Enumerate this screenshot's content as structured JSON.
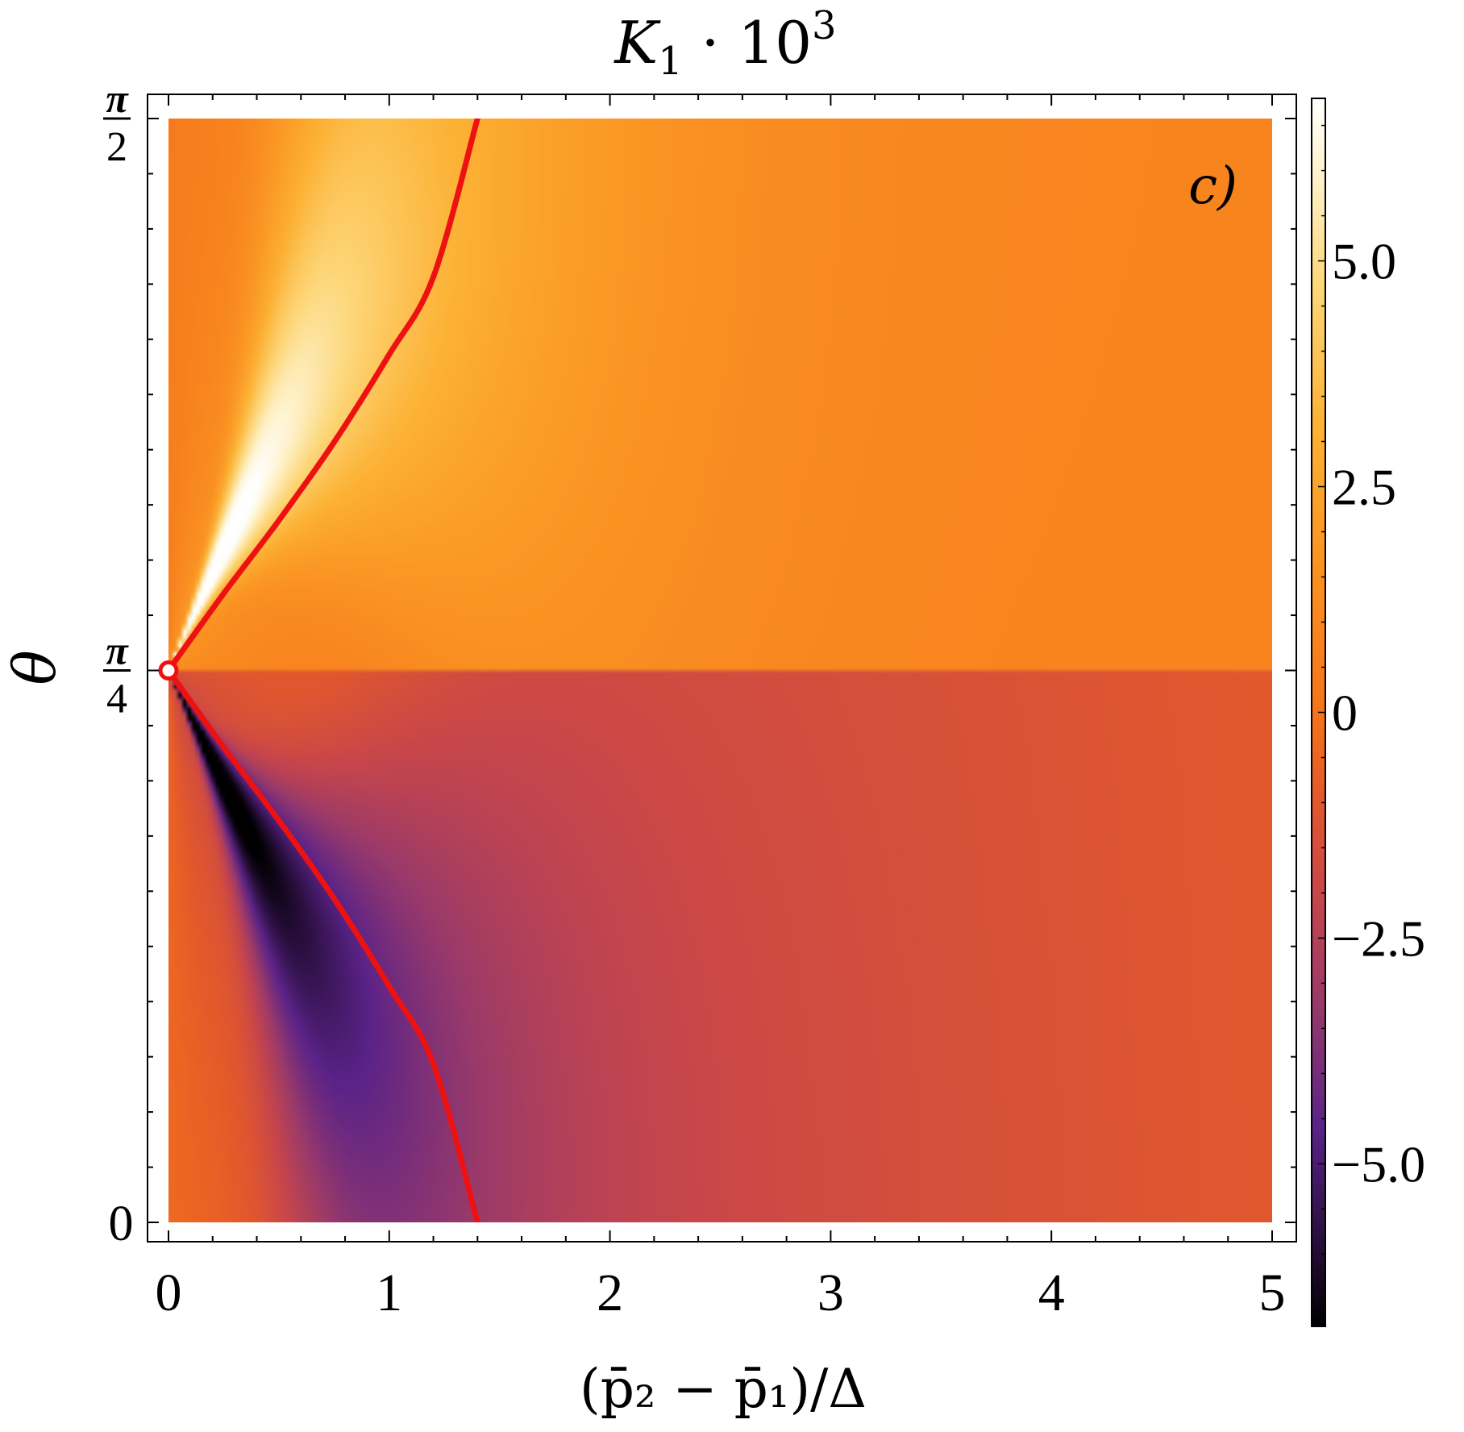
{
  "chart_data": {
    "type": "heatmap",
    "title": "K₁ · 10³",
    "title_parts": {
      "base": "K",
      "sub": "1",
      "rest": " · 10",
      "sup": "3"
    },
    "panel_label": "c)",
    "xlabel": "(p̄₂ − p̄₁)/Δ",
    "ylabel": "θ",
    "xlim": [
      0,
      5
    ],
    "ylim": [
      0,
      1.5708
    ],
    "x_ticks": [
      {
        "value": 0,
        "label": "0"
      },
      {
        "value": 1,
        "label": "1"
      },
      {
        "value": 2,
        "label": "2"
      },
      {
        "value": 3,
        "label": "3"
      },
      {
        "value": 4,
        "label": "4"
      },
      {
        "value": 5,
        "label": "5"
      }
    ],
    "y_ticks": [
      {
        "value": 0,
        "label": "0"
      },
      {
        "value": 0.7854,
        "label": "π/4",
        "num": "π",
        "den": "4"
      },
      {
        "value": 1.5708,
        "label": "π/2",
        "num": "π",
        "den": "2"
      }
    ],
    "colorbar": {
      "range": [
        -6.8,
        6.8
      ],
      "ticks": [
        {
          "value": 5.0,
          "label": "5.0"
        },
        {
          "value": 2.5,
          "label": "2.5"
        },
        {
          "value": 0,
          "label": "0"
        },
        {
          "value": -2.5,
          "label": "−2.5"
        },
        {
          "value": -5.0,
          "label": "−5.0"
        }
      ],
      "stops": [
        {
          "value": -6.8,
          "color": "#000000"
        },
        {
          "value": -5.8,
          "color": "#2a0f3e"
        },
        {
          "value": -4.6,
          "color": "#5a2388"
        },
        {
          "value": -3.2,
          "color": "#9a3a6a"
        },
        {
          "value": -2.0,
          "color": "#c8464a"
        },
        {
          "value": -0.9,
          "color": "#e45a2a"
        },
        {
          "value": 0.0,
          "color": "#f5741a"
        },
        {
          "value": 1.6,
          "color": "#fa9222"
        },
        {
          "value": 3.2,
          "color": "#fcb235"
        },
        {
          "value": 4.8,
          "color": "#fdd87c"
        },
        {
          "value": 6.0,
          "color": "#fef3cf"
        },
        {
          "value": 6.8,
          "color": "#ffffff"
        }
      ]
    },
    "special_point": {
      "x": 0,
      "y": 0.7854
    },
    "curves": [
      {
        "color": "#ee1111",
        "points": [
          [
            0,
            0.7854
          ],
          [
            0.25,
            0.8947
          ],
          [
            0.5,
            0.9988
          ],
          [
            0.75,
            1.1101
          ],
          [
            1.0,
            1.2349
          ],
          [
            1.2,
            1.3454
          ],
          [
            1.4,
            1.5708
          ]
        ]
      },
      {
        "color": "#ee1111",
        "points": [
          [
            0,
            0.7854
          ],
          [
            0.25,
            0.6761
          ],
          [
            0.5,
            0.572
          ],
          [
            0.75,
            0.4607
          ],
          [
            1.0,
            0.3359
          ],
          [
            1.2,
            0.2254
          ],
          [
            1.4,
            0.0
          ]
        ]
      }
    ]
  }
}
